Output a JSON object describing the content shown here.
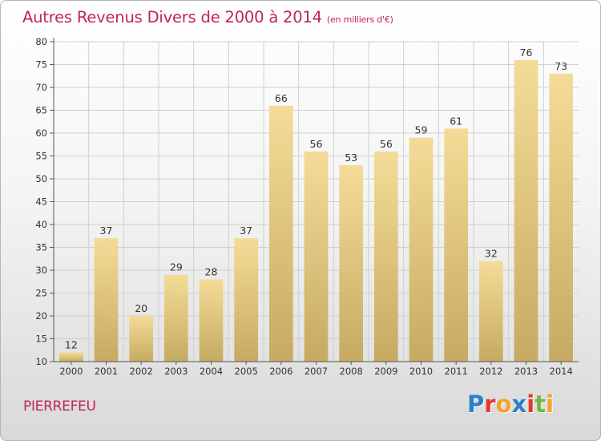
{
  "title": "Autres Revenus Divers de 2000 à 2014",
  "title_unit": "(en milliers d'€)",
  "place": "PIERREFEU",
  "logo": {
    "text": "Proxiti",
    "letters": [
      {
        "ch": "P",
        "color": "#2f7fc8"
      },
      {
        "ch": "r",
        "color": "#e3382c"
      },
      {
        "ch": "o",
        "color": "#f3a22a"
      },
      {
        "ch": "x",
        "color": "#2f7fc8"
      },
      {
        "ch": "i",
        "color": "#e3382c"
      },
      {
        "ch": "t",
        "color": "#74b83c"
      },
      {
        "ch": "i",
        "color": "#f3a22a"
      }
    ]
  },
  "colors": {
    "title": "#c0245c",
    "bar_light": "#f4dc98",
    "bar_dark": "#c6aa62",
    "grid": "#d0d0d0",
    "axis": "#555555"
  },
  "chart_data": {
    "type": "bar",
    "title": "Autres Revenus Divers de 2000 à 2014",
    "subtitle": "(en milliers d'€)",
    "categories": [
      "2000",
      "2001",
      "2002",
      "2003",
      "2004",
      "2005",
      "2006",
      "2007",
      "2008",
      "2009",
      "2010",
      "2011",
      "2012",
      "2013",
      "2014"
    ],
    "values": [
      12,
      37,
      20,
      29,
      28,
      37,
      66,
      56,
      53,
      56,
      59,
      61,
      32,
      76,
      73
    ],
    "ylim": [
      10,
      80
    ],
    "yticks": [
      10,
      15,
      20,
      25,
      30,
      35,
      40,
      45,
      50,
      55,
      60,
      65,
      70,
      75,
      80
    ],
    "grid": true,
    "xlabel": "",
    "ylabel": ""
  }
}
